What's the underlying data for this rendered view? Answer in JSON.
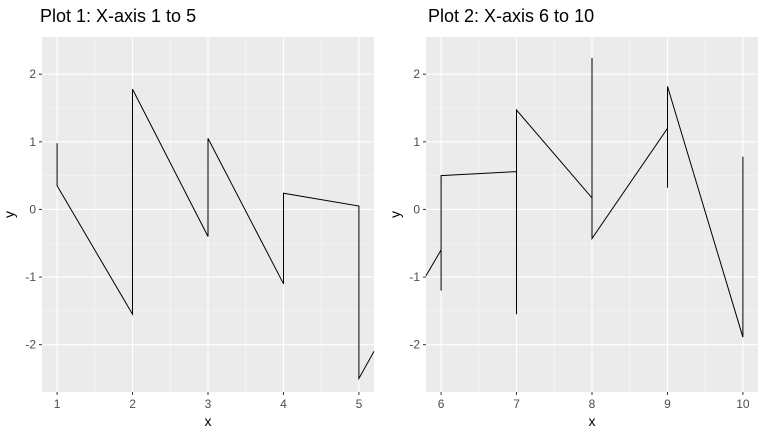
{
  "chart_data": [
    {
      "type": "line",
      "title": "Plot 1: X-axis 1 to 5",
      "xlabel": "x",
      "ylabel": "y",
      "xlim": [
        0.8,
        5.2
      ],
      "ylim": [
        -2.7,
        2.55
      ],
      "xticks": [
        1,
        2,
        3,
        4,
        5
      ],
      "yticks": [
        -2,
        -1,
        0,
        1,
        2
      ],
      "grid": true,
      "legend": "none",
      "series": [
        {
          "x": [
            1,
            1,
            2,
            2,
            3,
            3,
            4,
            4,
            5,
            5,
            5.2
          ],
          "y": [
            0.98,
            0.35,
            -1.55,
            1.78,
            -0.4,
            1.05,
            -1.1,
            0.24,
            0.05,
            -2.5,
            -2.1
          ]
        }
      ]
    },
    {
      "type": "line",
      "title": "Plot 2: X-axis 6 to 10",
      "xlabel": "x",
      "ylabel": "y",
      "xlim": [
        5.8,
        10.2
      ],
      "ylim": [
        -2.7,
        2.55
      ],
      "xticks": [
        6,
        7,
        8,
        9,
        10
      ],
      "yticks": [
        -2,
        -1,
        0,
        1,
        2
      ],
      "grid": true,
      "legend": "none",
      "series": [
        {
          "x": [
            5.8,
            6,
            6,
            6,
            7,
            7,
            7,
            8,
            8,
            8,
            9,
            9,
            9,
            10,
            10
          ],
          "y": [
            -0.98,
            -0.6,
            -1.2,
            0.5,
            0.56,
            -1.55,
            1.47,
            0.17,
            2.24,
            -0.43,
            1.2,
            0.32,
            1.82,
            -1.89,
            0.78
          ]
        }
      ]
    }
  ]
}
